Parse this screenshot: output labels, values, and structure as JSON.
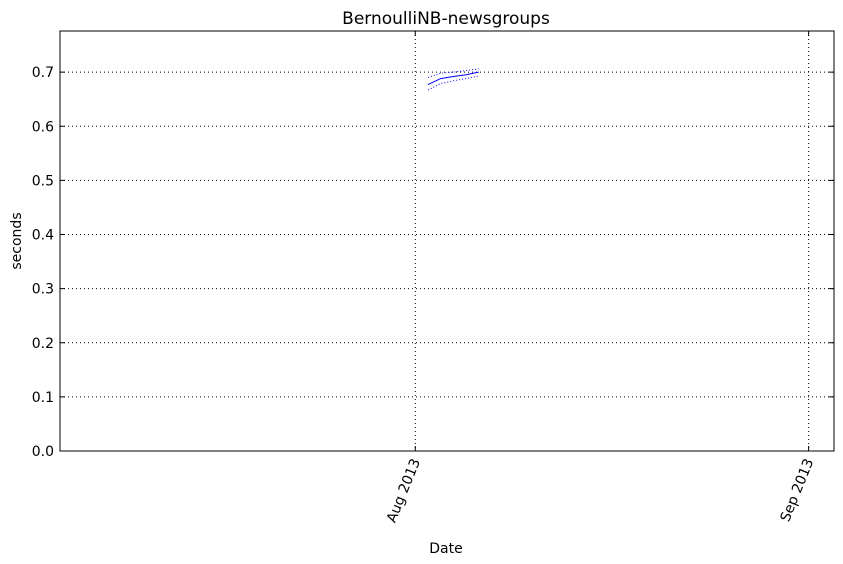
{
  "chart_data": {
    "type": "line",
    "title": "BernoulliNB-newsgroups",
    "xlabel": "Date",
    "ylabel": "seconds",
    "grid": true,
    "x_ticks": [
      {
        "date": "2013-08-01",
        "label": "Aug 2013"
      },
      {
        "date": "2013-09-01",
        "label": "Sep 2013"
      }
    ],
    "y_ticks": [
      "0.0",
      "0.1",
      "0.2",
      "0.3",
      "0.4",
      "0.5",
      "0.6",
      "0.7"
    ],
    "xlim": [
      "2013-07-04",
      "2013-09-03"
    ],
    "ylim": [
      0,
      0.776
    ],
    "colors": {
      "series": "#0000ff",
      "grid": "#000000"
    },
    "series": [
      {
        "role": "mean",
        "style": "solid",
        "x": [
          "2013-08-02",
          "2013-08-03",
          "2013-08-04",
          "2013-08-05",
          "2013-08-06"
        ],
        "y": [
          0.677,
          0.688,
          0.692,
          0.695,
          0.7
        ]
      },
      {
        "role": "upper",
        "style": "dotted",
        "x": [
          "2013-08-02",
          "2013-08-03",
          "2013-08-04",
          "2013-08-05",
          "2013-08-06"
        ],
        "y": [
          0.69,
          0.698,
          0.7,
          0.703,
          0.706
        ]
      },
      {
        "role": "lower",
        "style": "dotted",
        "x": [
          "2013-08-02",
          "2013-08-03",
          "2013-08-04",
          "2013-08-05",
          "2013-08-06"
        ],
        "y": [
          0.667,
          0.679,
          0.684,
          0.688,
          0.693
        ]
      }
    ]
  }
}
